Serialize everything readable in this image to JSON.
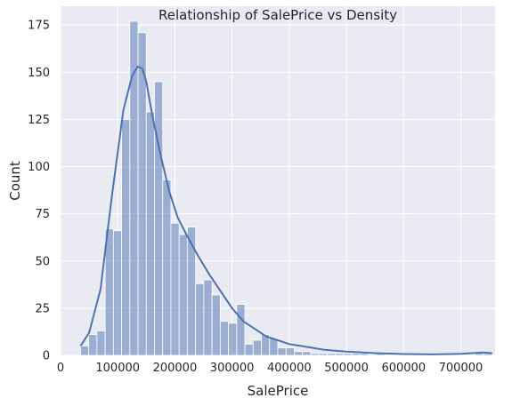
{
  "chart_data": {
    "type": "bar",
    "subtype": "histogram-with-kde",
    "title": "Relationship of SalePrice vs Density",
    "xlabel": "SalePrice",
    "ylabel": "Count",
    "xlim": [
      0,
      760000
    ],
    "ylim": [
      0,
      185
    ],
    "grid": true,
    "background": "#eaeaf2",
    "colors": {
      "bar": "#4c72b0",
      "bar_fill_opacity": 0.5,
      "kde": "#4c72b0",
      "grid": "#ffffff"
    },
    "x_ticks": [
      0,
      100000,
      200000,
      300000,
      400000,
      500000,
      600000,
      700000
    ],
    "x_tick_labels": [
      "0",
      "100000",
      "200000",
      "300000",
      "400000",
      "500000",
      "600000",
      "700000"
    ],
    "y_ticks": [
      0,
      25,
      50,
      75,
      100,
      125,
      150,
      175
    ],
    "y_tick_labels": [
      "0",
      "25",
      "50",
      "75",
      "100",
      "125",
      "150",
      "175"
    ],
    "bin_edges": [
      34900,
      49278,
      63656,
      78034,
      92412,
      106790,
      121168,
      135546,
      149924,
      164302,
      178680,
      193058,
      207436,
      221814,
      236192,
      250570,
      264948,
      279326,
      293704,
      308082,
      322460,
      336838,
      351216,
      365594,
      379972,
      394350,
      408728,
      423106,
      437484,
      451862,
      466240,
      480618,
      494996,
      509374,
      523752,
      538130,
      552508,
      566886,
      581264,
      595642,
      610020,
      624398,
      638776,
      653154,
      667532,
      681910,
      696288,
      710666,
      725044,
      739422,
      755000
    ],
    "counts": [
      5,
      11,
      13,
      67,
      66,
      125,
      177,
      171,
      129,
      145,
      93,
      70,
      64,
      68,
      38,
      40,
      32,
      18,
      17,
      27,
      6,
      8,
      11,
      9,
      4,
      4,
      2,
      2,
      1,
      1,
      1,
      1,
      1,
      1,
      1,
      0,
      1,
      0,
      0,
      0,
      0,
      0,
      0,
      0,
      0,
      0,
      0,
      0,
      1,
      1
    ],
    "kde": {
      "x": [
        34900,
        50000,
        70000,
        90000,
        110000,
        125000,
        135000,
        143000,
        150000,
        160000,
        175000,
        190000,
        205000,
        220000,
        240000,
        260000,
        280000,
        300000,
        320000,
        340000,
        360000,
        380000,
        400000,
        430000,
        460000,
        500000,
        550000,
        600000,
        650000,
        700000,
        740000,
        755000
      ],
      "y": [
        5,
        12,
        35,
        85,
        130,
        148,
        153,
        152,
        145,
        128,
        106,
        87,
        73,
        64,
        53,
        43,
        34,
        25,
        18,
        14,
        10,
        8,
        6,
        4.5,
        3,
        2,
        1.2,
        0.7,
        0.5,
        0.8,
        1.5,
        1.2
      ]
    }
  }
}
